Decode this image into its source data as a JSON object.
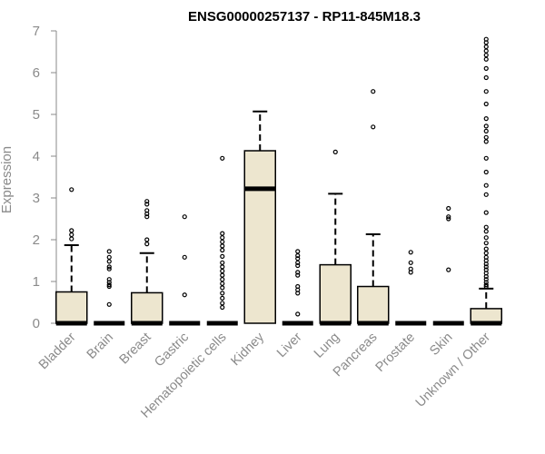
{
  "chart_data": {
    "type": "boxplot",
    "title": "ENSG00000257137 - RP11-845M18.3",
    "ylabel": "Expression",
    "xlabel": "",
    "ylim": [
      0,
      7
    ],
    "yticks": [
      0,
      1,
      2,
      3,
      4,
      5,
      6,
      7
    ],
    "categories": [
      "Bladder",
      "Brain",
      "Breast",
      "Gastric",
      "Hematopoietic cells",
      "Kidney",
      "Liver",
      "Lung",
      "Pancreas",
      "Prostate",
      "Skin",
      "Unknown / Other"
    ],
    "box_fill": "#ede6cf",
    "outline_color": "#000000",
    "axis_color": "#8a8a8a",
    "boxes": [
      {
        "category": "Bladder",
        "q1": 0,
        "median": 0,
        "q3": 0.75,
        "whisker_low": 0,
        "whisker_high": 1.87,
        "outliers": [
          3.2,
          2.22,
          2.12,
          2.02
        ]
      },
      {
        "category": "Brain",
        "q1": 0,
        "median": 0,
        "q3": 0,
        "whisker_low": 0,
        "whisker_high": 0,
        "outliers": [
          1.72,
          1.58,
          1.48,
          1.35,
          1.3,
          1.05,
          0.98,
          0.92,
          0.88,
          0.45
        ]
      },
      {
        "category": "Breast",
        "q1": 0,
        "median": 0,
        "q3": 0.73,
        "whisker_low": 0,
        "whisker_high": 1.68,
        "outliers": [
          2.92,
          2.85,
          2.7,
          2.62,
          2.55,
          2.0,
          1.9
        ]
      },
      {
        "category": "Gastric",
        "q1": 0,
        "median": 0,
        "q3": 0,
        "whisker_low": 0,
        "whisker_high": 0,
        "outliers": [
          2.55,
          1.58,
          0.68
        ]
      },
      {
        "category": "Hematopoietic cells",
        "q1": 0,
        "median": 0,
        "q3": 0,
        "whisker_low": 0,
        "whisker_high": 0,
        "outliers": [
          3.95,
          2.15,
          2.05,
          1.95,
          1.85,
          1.75,
          1.6,
          1.45,
          1.35,
          1.25,
          1.15,
          1.05,
          0.95,
          0.85,
          0.72,
          0.6,
          0.48,
          0.38
        ]
      },
      {
        "category": "Kidney",
        "q1": 0,
        "median": 3.22,
        "q3": 4.13,
        "whisker_low": 0,
        "whisker_high": 5.07,
        "outliers": []
      },
      {
        "category": "Liver",
        "q1": 0,
        "median": 0,
        "q3": 0,
        "whisker_low": 0,
        "whisker_high": 0,
        "outliers": [
          1.72,
          1.62,
          1.55,
          1.45,
          1.38,
          1.22,
          1.15,
          0.88,
          0.8,
          0.72,
          0.22
        ]
      },
      {
        "category": "Lung",
        "q1": 0,
        "median": 0,
        "q3": 1.4,
        "whisker_low": 0,
        "whisker_high": 3.1,
        "outliers": [
          4.1
        ]
      },
      {
        "category": "Pancreas",
        "q1": 0,
        "median": 0,
        "q3": 0.88,
        "whisker_low": 0,
        "whisker_high": 2.13,
        "outliers": [
          5.55,
          4.7
        ]
      },
      {
        "category": "Prostate",
        "q1": 0,
        "median": 0,
        "q3": 0,
        "whisker_low": 0,
        "whisker_high": 0,
        "outliers": [
          1.7,
          1.45,
          1.3,
          1.22
        ]
      },
      {
        "category": "Skin",
        "q1": 0,
        "median": 0,
        "q3": 0,
        "whisker_low": 0,
        "whisker_high": 0,
        "outliers": [
          2.75,
          2.55,
          2.5,
          1.28
        ]
      },
      {
        "category": "Unknown / Other",
        "q1": 0,
        "median": 0,
        "q3": 0.35,
        "whisker_low": 0,
        "whisker_high": 0.83,
        "outliers": [
          6.8,
          6.72,
          6.62,
          6.52,
          6.42,
          6.32,
          6.1,
          5.88,
          5.55,
          5.25,
          4.9,
          4.72,
          4.6,
          4.45,
          4.35,
          3.95,
          3.62,
          3.3,
          3.08,
          2.65,
          2.3,
          2.2,
          2.05,
          1.92,
          1.78,
          1.68,
          1.58,
          1.5,
          1.42,
          1.35,
          1.28,
          1.2,
          1.12,
          1.05,
          0.98,
          0.92,
          0.88
        ]
      }
    ]
  }
}
